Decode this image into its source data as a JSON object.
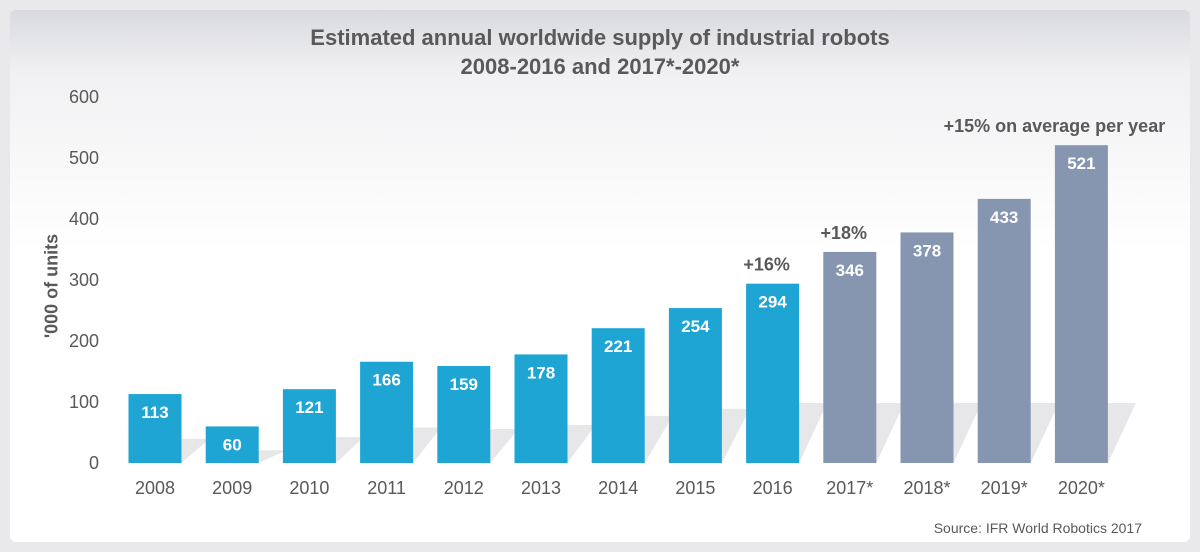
{
  "chart_data": {
    "type": "bar",
    "title": "Estimated annual worldwide supply of industrial robots",
    "subtitle": "2008-2016 and 2017*-2020*",
    "ylabel": "'000 of units",
    "xlabel": "",
    "ylim": [
      0,
      600
    ],
    "yticks": [
      0,
      100,
      200,
      300,
      400,
      500,
      600
    ],
    "categories": [
      "2008",
      "2009",
      "2010",
      "2011",
      "2012",
      "2013",
      "2014",
      "2015",
      "2016",
      "2017*",
      "2018*",
      "2019*",
      "2020*"
    ],
    "values": [
      113,
      60,
      121,
      166,
      159,
      178,
      221,
      254,
      294,
      346,
      378,
      433,
      521
    ],
    "value_labels": [
      "113",
      "60",
      "121",
      "166",
      "159",
      "178",
      "221",
      "254",
      "294",
      "346",
      "378",
      "433",
      "521"
    ],
    "series_kind": [
      "actual",
      "actual",
      "actual",
      "actual",
      "actual",
      "actual",
      "actual",
      "actual",
      "actual",
      "forecast",
      "forecast",
      "forecast",
      "forecast"
    ],
    "colors": {
      "actual": "#1ea5d4",
      "forecast": "#8696b0",
      "text": "#595959",
      "bar_text": "#ffffff"
    },
    "annotations": [
      {
        "text": "+16%",
        "category_index": 8
      },
      {
        "text": "+18%",
        "category_index": 9
      },
      {
        "text": "+15% on average per year",
        "category_index": 12
      }
    ],
    "grid": false
  },
  "source": "Source: IFR World Robotics 2017"
}
